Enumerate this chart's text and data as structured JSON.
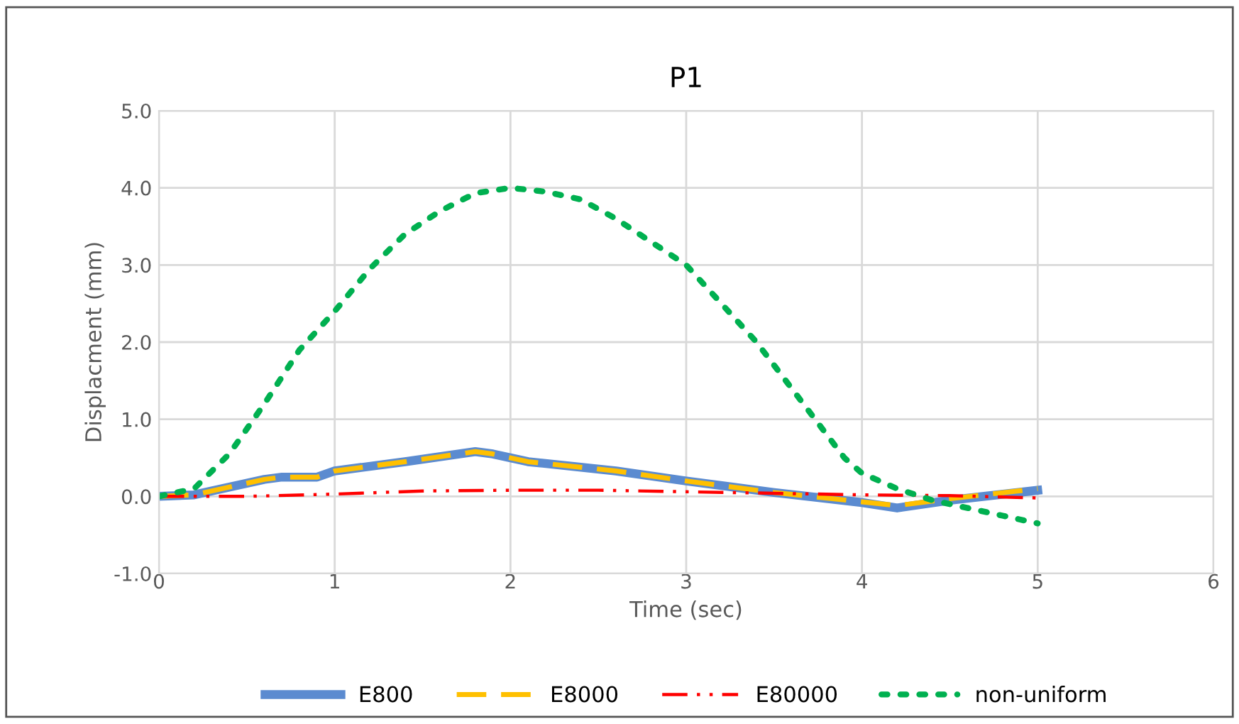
{
  "chart_data": {
    "type": "line",
    "title": "P1",
    "xlabel": "Time (sec)",
    "ylabel": "Displacment (mm)",
    "xlim": [
      0,
      6
    ],
    "xticks": [
      0,
      1,
      2,
      3,
      4,
      5,
      6
    ],
    "ylim": [
      -1,
      5
    ],
    "yticks": [
      {
        "value": -1,
        "label": "-1.0"
      },
      {
        "value": 0,
        "label": "0.0"
      },
      {
        "value": 1,
        "label": "1.0"
      },
      {
        "value": 2,
        "label": "2.0"
      },
      {
        "value": 3,
        "label": "3.0"
      },
      {
        "value": 4,
        "label": "4.0"
      },
      {
        "value": 5,
        "label": "5.0"
      }
    ],
    "grid": true,
    "legend": "bottom",
    "series": [
      {
        "name": "E800",
        "color": "#5b8bd0",
        "line_style": "solid",
        "x": [
          0,
          0.2,
          0.6,
          0.7,
          0.9,
          1,
          1.4,
          1.8,
          1.9,
          2.1,
          2.6,
          3,
          3.5,
          4,
          4.2,
          4.5,
          5
        ],
        "values": [
          0,
          0.02,
          0.22,
          0.25,
          0.25,
          0.33,
          0.45,
          0.58,
          0.55,
          0.45,
          0.33,
          0.2,
          0.05,
          -0.08,
          -0.15,
          -0.05,
          0.08
        ]
      },
      {
        "name": "E8000",
        "color": "#ffc000",
        "line_style": "dashed",
        "x": [
          0,
          0.2,
          0.6,
          0.7,
          0.9,
          1,
          1.4,
          1.8,
          1.9,
          2.1,
          2.6,
          3,
          3.5,
          4,
          4.2,
          4.5,
          5
        ],
        "values": [
          0,
          0.02,
          0.22,
          0.25,
          0.25,
          0.33,
          0.45,
          0.58,
          0.55,
          0.45,
          0.33,
          0.2,
          0.05,
          -0.07,
          -0.12,
          -0.03,
          0.1
        ]
      },
      {
        "name": "E80000",
        "color": "#ff0000",
        "line_style": "dashdot",
        "x": [
          0,
          0.5,
          1,
          1.5,
          2,
          2.5,
          3,
          3.5,
          4,
          4.5,
          5
        ],
        "values": [
          0,
          0,
          0.03,
          0.07,
          0.08,
          0.08,
          0.06,
          0.04,
          0.02,
          0.01,
          -0.02
        ]
      },
      {
        "name": "non-uniform",
        "color": "#00b050",
        "line_style": "dotted",
        "x": [
          0,
          0.2,
          0.4,
          0.6,
          0.8,
          1,
          1.2,
          1.4,
          1.6,
          1.8,
          2,
          2.2,
          2.4,
          2.6,
          2.8,
          3,
          3.2,
          3.4,
          3.6,
          3.7,
          3.8,
          3.9,
          4,
          4.2,
          4.4,
          4.6,
          4.8,
          5
        ],
        "values": [
          0,
          0.1,
          0.55,
          1.2,
          1.9,
          2.4,
          2.95,
          3.4,
          3.7,
          3.93,
          4.0,
          3.95,
          3.85,
          3.6,
          3.3,
          3.0,
          2.5,
          2.0,
          1.4,
          1.1,
          0.8,
          0.5,
          0.3,
          0.1,
          -0.05,
          -0.15,
          -0.25,
          -0.35
        ]
      }
    ]
  }
}
